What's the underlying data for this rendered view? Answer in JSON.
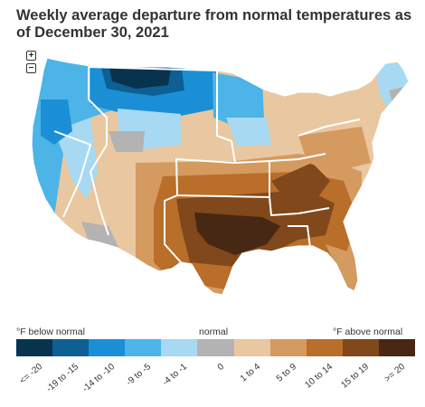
{
  "title": "Weekly average departure from normal temperatures as of December 30, 2021",
  "zoom": {
    "in_label": "+",
    "out_label": "−"
  },
  "legend": {
    "below_label": "°F below normal",
    "normal_label": "normal",
    "above_label": "°F above normal",
    "classes": [
      {
        "label": "<= -20",
        "color": "#08334f"
      },
      {
        "label": "-19 to -15",
        "color": "#0d5f94"
      },
      {
        "label": "-14 to -10",
        "color": "#1b8fd6"
      },
      {
        "label": "-9 to -5",
        "color": "#4cb4e7"
      },
      {
        "label": "-4 to -1",
        "color": "#a7d9f3"
      },
      {
        "label": "0",
        "color": "#b3b3b3"
      },
      {
        "label": "1 to 4",
        "color": "#e9c7a0"
      },
      {
        "label": "5 to 9",
        "color": "#d49a60"
      },
      {
        "label": "10 to 14",
        "color": "#b96e2a"
      },
      {
        "label": "15 to 19",
        "color": "#80481b"
      },
      {
        "label": ">= 20",
        "color": "#472814"
      }
    ]
  }
}
